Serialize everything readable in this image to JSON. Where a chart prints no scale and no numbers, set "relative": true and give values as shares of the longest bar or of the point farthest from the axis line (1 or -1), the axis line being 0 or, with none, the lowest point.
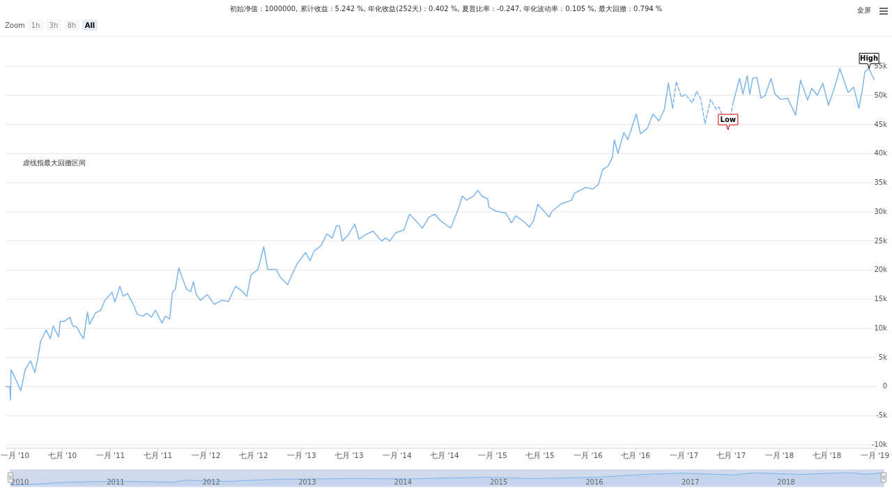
{
  "chart_data": [
    {
      "type": "line",
      "title": "初始净值：1000000, 累计收益：5.242 %, 年化收益(252天)：0.402 %, 夏普比率：-0.247, 年化波动率：0.105 %, 最大回撤：0.794 %",
      "grid": "y",
      "xlim": [
        "2009-11-26",
        "2019-01-08"
      ],
      "xticks": [
        {
          "value": "2010-01-01",
          "label": "一月 '10"
        },
        {
          "value": "2010-07-01",
          "label": "七月 '10"
        },
        {
          "value": "2011-01-01",
          "label": "一月 '11"
        },
        {
          "value": "2011-07-01",
          "label": "七月 '11"
        },
        {
          "value": "2012-01-01",
          "label": "一月 '12"
        },
        {
          "value": "2012-07-01",
          "label": "七月 '12"
        },
        {
          "value": "2013-01-01",
          "label": "一月 '13"
        },
        {
          "value": "2013-07-01",
          "label": "七月 '13"
        },
        {
          "value": "2014-01-01",
          "label": "一月 '14"
        },
        {
          "value": "2014-07-01",
          "label": "七月 '14"
        },
        {
          "value": "2015-01-01",
          "label": "一月 '15"
        },
        {
          "value": "2015-07-01",
          "label": "七月 '15"
        },
        {
          "value": "2016-01-01",
          "label": "一月 '16"
        },
        {
          "value": "2016-07-01",
          "label": "七月 '16"
        },
        {
          "value": "2017-01-01",
          "label": "一月 '17"
        },
        {
          "value": "2017-07-01",
          "label": "七月 '17"
        },
        {
          "value": "2018-01-01",
          "label": "一月 '18"
        },
        {
          "value": "2018-07-01",
          "label": "七月 '18"
        },
        {
          "value": "2019-01-01",
          "label": "一月 '19"
        }
      ],
      "ylim": [
        -10000,
        55000
      ],
      "yticks": [
        {
          "value": -10000,
          "label": "-10k"
        },
        {
          "value": -5000,
          "label": "-5k"
        },
        0,
        {
          "value": 5000,
          "label": "5k"
        },
        {
          "value": 10000,
          "label": "10k"
        },
        {
          "value": 15000,
          "label": "15k"
        },
        {
          "value": 20000,
          "label": "20k"
        },
        {
          "value": 25000,
          "label": "25k"
        },
        {
          "value": 30000,
          "label": "30k"
        },
        {
          "value": 35000,
          "label": "35k"
        },
        {
          "value": 40000,
          "label": "40k"
        },
        {
          "value": 45000,
          "label": "45k"
        },
        {
          "value": 50000,
          "label": "50k"
        },
        {
          "value": 55000,
          "label": "55k"
        }
      ],
      "annotations": [
        "虚线指最大回撤区间",
        "Zoom",
        "1h",
        "3h",
        "8h",
        "All",
        "全屏",
        {
          "text": "High",
          "x": "2018-12-10",
          "y": 54600
        },
        {
          "text": "Low",
          "x": "2017-06-19",
          "y": 44100
        }
      ],
      "series": [
        {
          "color": "#7cb5ec",
          "line_style": "solid",
          "x": [
            "2009-11-26",
            "2009-12-12",
            "2009-12-15",
            "2009-12-17",
            "2009-12-28",
            "2010-01-23",
            "2010-02-09",
            "2010-03-02",
            "2010-03-18",
            "2010-03-29",
            "2010-04-09",
            "2010-04-14",
            "2010-04-30",
            "2010-05-16",
            "2010-05-27",
            "2010-06-17",
            "2010-06-23",
            "2010-07-09",
            "2010-07-30",
            "2010-08-10",
            "2010-08-26",
            "2010-09-06",
            "2010-09-20",
            "2010-10-05",
            "2010-10-13",
            "2010-11-04",
            "2010-11-25",
            "2010-12-11",
            "2011-01-07",
            "2011-01-18",
            "2011-02-06",
            "2011-02-19",
            "2011-03-07",
            "2011-03-29",
            "2011-04-14",
            "2011-05-05",
            "2011-05-21",
            "2011-06-06",
            "2011-06-22",
            "2011-07-17",
            "2011-07-30",
            "2011-08-15",
            "2011-08-26",
            "2011-09-06",
            "2011-09-19",
            "2011-10-02",
            "2011-10-19",
            "2011-11-04",
            "2011-11-14",
            "2011-11-25",
            "2011-12-11",
            "2012-01-06",
            "2012-02-02",
            "2012-03-01",
            "2012-03-27",
            "2012-04-23",
            "2012-05-15",
            "2012-06-05",
            "2012-06-21",
            "2012-07-18",
            "2012-08-09",
            "2012-08-24",
            "2012-09-26",
            "2012-10-12",
            "2012-11-08",
            "2012-11-29",
            "2012-12-15",
            "2013-01-16",
            "2013-02-02",
            "2013-02-18",
            "2013-03-16",
            "2013-04-07",
            "2013-04-28",
            "2013-05-14",
            "2013-05-25",
            "2013-06-05",
            "2013-06-26",
            "2013-07-23",
            "2013-08-08",
            "2013-08-30",
            "2013-10-01",
            "2013-11-02",
            "2013-11-18",
            "2013-12-04",
            "2013-12-26",
            "2014-01-27",
            "2014-02-17",
            "2014-03-11",
            "2014-04-07",
            "2014-05-03",
            "2014-05-25",
            "2014-06-13",
            "2014-07-24",
            "2014-08-22",
            "2014-09-07",
            "2014-09-23",
            "2014-10-20",
            "2014-11-05",
            "2014-11-21",
            "2014-12-13",
            "2014-12-18",
            "2015-01-14",
            "2015-02-20",
            "2015-03-14",
            "2015-03-30",
            "2015-05-01",
            "2015-05-22",
            "2015-06-07",
            "2015-06-23",
            "2015-07-10",
            "2015-08-05",
            "2015-08-16",
            "2015-09-17",
            "2015-10-30",
            "2015-11-10",
            "2015-12-02",
            "2015-12-23",
            "2016-01-19",
            "2016-02-09",
            "2016-02-25",
            "2016-03-18",
            "2016-04-03",
            "2016-04-10",
            "2016-04-24",
            "2016-05-16",
            "2016-06-01",
            "2016-07-03",
            "2016-07-19",
            "2016-08-15",
            "2016-09-05",
            "2016-09-27",
            "2016-10-18",
            "2016-11-03",
            "2016-11-19",
            "2017-02-01",
            "2017-07-08",
            "2017-08-02",
            "2017-08-15",
            "2017-08-31",
            "2017-09-10",
            "2017-09-21",
            "2017-10-07",
            "2017-10-23",
            "2017-11-08",
            "2017-11-30",
            "2017-12-16",
            "2018-01-06",
            "2018-02-02",
            "2018-03-04",
            "2018-03-23",
            "2018-04-19",
            "2018-05-05",
            "2018-05-26",
            "2018-06-16",
            "2018-07-08",
            "2018-08-04",
            "2018-08-20",
            "2018-09-21",
            "2018-10-12",
            "2018-11-01",
            "2018-11-14",
            "2018-11-24",
            "2018-12-10",
            "2018-12-29"
          ],
          "values": [
            0,
            0,
            -2300,
            2900,
            1900,
            -700,
            2900,
            4400,
            2400,
            4800,
            7800,
            8200,
            9700,
            8200,
            10400,
            8500,
            11200,
            11200,
            11900,
            10400,
            10200,
            9200,
            8200,
            12800,
            10700,
            12600,
            13100,
            14800,
            16200,
            14500,
            17200,
            15500,
            16000,
            14100,
            12400,
            12100,
            12600,
            11900,
            13100,
            10900,
            12100,
            11600,
            16200,
            16700,
            20400,
            18700,
            16700,
            16300,
            18000,
            15800,
            14800,
            15800,
            14100,
            14800,
            14600,
            17200,
            16500,
            15500,
            19200,
            20100,
            24000,
            20100,
            20100,
            18700,
            17500,
            19600,
            21100,
            23000,
            21600,
            23300,
            24200,
            26200,
            25500,
            27600,
            27600,
            25000,
            25900,
            27900,
            25300,
            26000,
            26700,
            25000,
            25500,
            25000,
            26400,
            26900,
            29600,
            28600,
            27200,
            29100,
            29600,
            28600,
            27200,
            30400,
            32700,
            32000,
            32700,
            33700,
            32700,
            32200,
            30800,
            30100,
            29800,
            28100,
            29300,
            28300,
            27400,
            28600,
            31300,
            30400,
            29100,
            30100,
            31300,
            32000,
            33200,
            33700,
            34200,
            33900,
            34700,
            37200,
            37900,
            39400,
            42400,
            40000,
            43600,
            42400,
            46800,
            43400,
            44400,
            46800,
            45600,
            47500,
            52100,
            47800,
            null,
            48700,
            52900,
            50200,
            53400,
            50200,
            52900,
            53100,
            49500,
            50000,
            52900,
            50200,
            49300,
            49500,
            46600,
            52600,
            49200,
            51200,
            50000,
            52100,
            48300,
            51900,
            54600,
            50500,
            51400,
            47800,
            50900,
            54100,
            54600,
            52700
          ]
        },
        {
          "color": "#7cb5ec",
          "line_style": "dashed",
          "x": [
            "2016-11-19",
            "2016-12-03",
            "2016-12-22",
            "2017-01-07",
            "2017-02-02",
            "2017-02-19",
            "2017-03-07",
            "2017-03-23",
            "2017-04-13",
            "2017-05-05",
            "2017-05-15",
            "2017-06-19",
            "2017-07-08"
          ],
          "values": [
            47800,
            52400,
            49700,
            50200,
            48700,
            50700,
            49300,
            45100,
            49300,
            47600,
            48000,
            44100,
            48700
          ]
        }
      ]
    },
    {
      "type": "area",
      "relative": true,
      "tick_labels": "x",
      "xlim": [
        "2009-11-26",
        "2019-01-08"
      ],
      "xticks": [
        {
          "value": "2010-01-01",
          "label": "2010"
        },
        {
          "value": "2011-01-01",
          "label": "2011"
        },
        {
          "value": "2012-01-01",
          "label": "2012"
        },
        {
          "value": "2013-01-01",
          "label": "2013"
        },
        {
          "value": "2014-01-01",
          "label": "2014"
        },
        {
          "value": "2015-01-01",
          "label": "2015"
        },
        {
          "value": "2016-01-01",
          "label": "2016"
        },
        {
          "value": "2017-01-01",
          "label": "2017"
        },
        {
          "value": "2018-01-01",
          "label": "2018"
        }
      ],
      "series": [
        {
          "color": "#7cb5ec",
          "x": [
            "2009-11-26",
            "2009-12-15",
            "2010-07-01",
            "2011-01-07",
            "2011-08-15",
            "2011-09-19",
            "2012-03-01",
            "2012-08-09",
            "2013-05-25",
            "2014-01-27",
            "2014-11-05",
            "2015-05-22",
            "2016-01-19",
            "2016-07-03",
            "2016-12-03",
            "2017-06-19",
            "2017-08-31",
            "2018-03-04",
            "2018-08-20",
            "2018-11-01",
            "2018-12-29"
          ],
          "values": [
            0.04,
            0,
            0.24,
            0.32,
            0.24,
            0.4,
            0.3,
            0.46,
            0.53,
            0.51,
            0.63,
            0.52,
            0.64,
            0.86,
            0.96,
            0.82,
            0.98,
            0.86,
            1,
            0.88,
            0.97
          ]
        }
      ]
    }
  ]
}
